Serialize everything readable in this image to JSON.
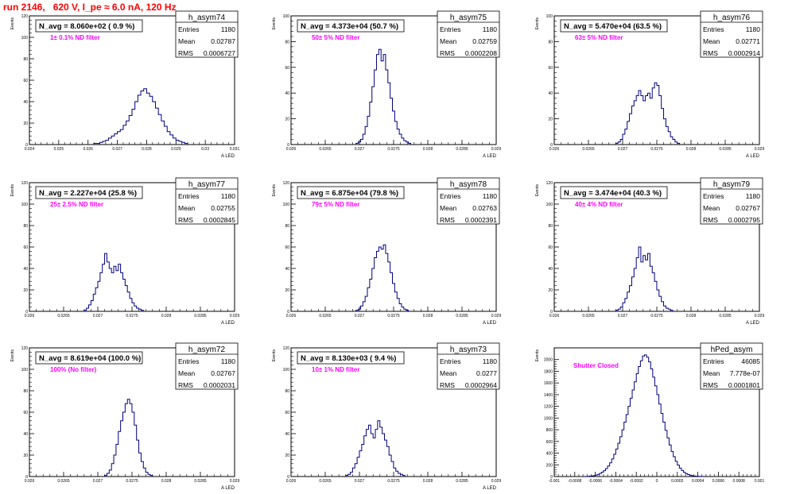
{
  "page": {
    "title": "run 2146,   620 V, I_pe ≈ 6.0 nA, 120 Hz"
  },
  "stat_labels": {
    "entries": "Entries",
    "mean": "Mean",
    "rms": "RMS"
  },
  "colors": {
    "title": "#ff0000",
    "histogram_line": "#000080",
    "annotation": "#ff00ff",
    "axis": "#000000"
  },
  "chart_data": [
    {
      "type": "histogram",
      "name": "h_asym74",
      "navg": "N_avg = 8.060e+02 ( 0.9 %)",
      "filter": "1± 0.1% ND filter",
      "entries": "1180",
      "mean": "0.02787",
      "rms": "0.0006727",
      "ylabel": "Events",
      "xlabel": "A_LED",
      "xlim": [
        0.024,
        0.031
      ],
      "ylim": [
        0,
        120
      ],
      "xticks": [
        "0.024",
        "0.025",
        "0.026",
        "0.027",
        "0.028",
        "0.029",
        "0.03",
        "0.031"
      ],
      "yticks": [
        "0",
        "20",
        "40",
        "60",
        "80",
        "100",
        "120"
      ],
      "bin_edges": [
        0.0262,
        0.0264
      ],
      "bin_width": 0.0001,
      "counts": [
        1,
        1,
        2,
        3,
        4,
        6,
        8,
        10,
        12,
        14,
        18,
        22,
        27,
        33,
        40,
        46,
        50,
        52,
        48,
        45,
        40,
        34,
        28,
        22,
        17,
        12,
        9,
        6,
        4,
        3,
        2,
        1
      ]
    },
    {
      "type": "histogram",
      "name": "h_asym75",
      "navg": "N_avg = 4.373e+04 (50.7 %)",
      "filter": "50± 5% ND filter",
      "entries": "1180",
      "mean": "0.02759",
      "rms": "0.0002208",
      "ylabel": "Events",
      "xlabel": "A_LED",
      "xlim": [
        0.026,
        0.029
      ],
      "ylim": [
        0,
        100
      ],
      "xticks": [
        "0.026",
        "0.0265",
        "0.027",
        "0.0275",
        "0.028",
        "0.0285",
        "0.029"
      ],
      "yticks": [
        "0",
        "20",
        "40",
        "60",
        "80",
        "100"
      ],
      "bin_width": 3.33e-05,
      "bin_start": 0.02695,
      "counts": [
        1,
        2,
        4,
        8,
        14,
        22,
        33,
        45,
        58,
        70,
        74,
        65,
        70,
        58,
        48,
        36,
        26,
        18,
        12,
        8,
        5,
        3,
        2,
        1
      ]
    },
    {
      "type": "histogram",
      "name": "h_asym76",
      "navg": "N_avg = 5.470e+04 (63.5 %)",
      "filter": "63± 5% ND filter",
      "entries": "1180",
      "mean": "0.02771",
      "rms": "0.0002914",
      "ylabel": "Events",
      "xlabel": "A_LED",
      "xlim": [
        0.026,
        0.029
      ],
      "ylim": [
        0,
        100
      ],
      "xticks": [
        "0.026",
        "0.0265",
        "0.027",
        "0.0275",
        "0.028",
        "0.0285",
        "0.029"
      ],
      "yticks": [
        "0",
        "20",
        "40",
        "60",
        "80",
        "100"
      ],
      "bin_width": 3.33e-05,
      "bin_start": 0.0269,
      "counts": [
        1,
        2,
        4,
        8,
        12,
        18,
        24,
        30,
        34,
        38,
        42,
        38,
        34,
        38,
        40,
        36,
        44,
        48,
        46,
        38,
        28,
        20,
        14,
        10,
        6,
        4,
        2,
        1
      ]
    },
    {
      "type": "histogram",
      "name": "h_asym77",
      "navg": "N_avg = 2.227e+04 (25.8 %)",
      "filter": "25± 2.5% ND filter",
      "entries": "1180",
      "mean": "0.02755",
      "rms": "0.0002845",
      "ylabel": "Events",
      "xlabel": "A_LED",
      "xlim": [
        0.026,
        0.029
      ],
      "ylim": [
        0,
        120
      ],
      "xticks": [
        "0.026",
        "0.0265",
        "0.027",
        "0.0275",
        "0.028",
        "0.0285",
        "0.029"
      ],
      "yticks": [
        "0",
        "20",
        "40",
        "60",
        "80",
        "100",
        "120"
      ],
      "bin_width": 3.33e-05,
      "bin_start": 0.0268,
      "counts": [
        1,
        3,
        6,
        10,
        16,
        22,
        28,
        36,
        44,
        54,
        46,
        40,
        36,
        42,
        38,
        44,
        36,
        30,
        24,
        18,
        12,
        8,
        5,
        3,
        2,
        1
      ]
    },
    {
      "type": "histogram",
      "name": "h_asym78",
      "navg": "N_avg = 6.875e+04 (79.8 %)",
      "filter": "79± 5% ND filter",
      "entries": "1180",
      "mean": "0.02763",
      "rms": "0.0002391",
      "ylabel": "Events",
      "xlabel": "A_LED",
      "xlim": [
        0.026,
        0.029
      ],
      "ylim": [
        0,
        120
      ],
      "xticks": [
        "0.026",
        "0.0265",
        "0.027",
        "0.0275",
        "0.028",
        "0.0285",
        "0.029"
      ],
      "yticks": [
        "0",
        "20",
        "40",
        "60",
        "80",
        "100",
        "120"
      ],
      "bin_width": 3.33e-05,
      "bin_start": 0.02695,
      "counts": [
        1,
        2,
        5,
        9,
        14,
        22,
        30,
        40,
        50,
        56,
        60,
        58,
        62,
        54,
        46,
        36,
        26,
        18,
        12,
        7,
        4,
        2,
        1
      ]
    },
    {
      "type": "histogram",
      "name": "h_asym79",
      "navg": "N_avg = 3.474e+04 (40.3 %)",
      "filter": "40± 4% ND filter",
      "entries": "1180",
      "mean": "0.02767",
      "rms": "0.0002795",
      "ylabel": "Events",
      "xlabel": "A_LED",
      "xlim": [
        0.026,
        0.029
      ],
      "ylim": [
        0,
        120
      ],
      "xticks": [
        "0.026",
        "0.0265",
        "0.027",
        "0.0275",
        "0.028",
        "0.0285",
        "0.029"
      ],
      "yticks": [
        "0",
        "20",
        "40",
        "60",
        "80",
        "100",
        "120"
      ],
      "bin_width": 3.33e-05,
      "bin_start": 0.0269,
      "counts": [
        1,
        2,
        4,
        8,
        12,
        18,
        24,
        32,
        40,
        50,
        60,
        46,
        52,
        48,
        54,
        42,
        36,
        28,
        20,
        14,
        9,
        5,
        3,
        2,
        1
      ]
    },
    {
      "type": "histogram",
      "name": "h_asym72",
      "navg": "N_avg = 8.619e+04 (100.0 %)",
      "filter": "100% (No filter)",
      "entries": "1180",
      "mean": "0.02767",
      "rms": "0.0002031",
      "ylabel": "Events",
      "xlabel": "A_LED",
      "xlim": [
        0.026,
        0.029
      ],
      "ylim": [
        0,
        120
      ],
      "xticks": [
        "0.026",
        "0.0265",
        "0.027",
        "0.0275",
        "0.028",
        "0.0285",
        "0.029"
      ],
      "yticks": [
        "0",
        "20",
        "40",
        "60",
        "80",
        "100",
        "120"
      ],
      "bin_width": 3.33e-05,
      "bin_start": 0.0271,
      "counts": [
        1,
        3,
        6,
        12,
        20,
        30,
        42,
        52,
        60,
        68,
        72,
        68,
        60,
        48,
        34,
        22,
        14,
        8,
        4,
        2,
        1
      ]
    },
    {
      "type": "histogram",
      "name": "h_asym73",
      "navg": "N_avg = 8.130e+03 ( 9.4 %)",
      "filter": "10± 1% ND filter",
      "entries": "1180",
      "mean": "0.0277",
      "rms": "0.0002964",
      "ylabel": "Events",
      "xlabel": "A_LED",
      "xlim": [
        0.026,
        0.029
      ],
      "ylim": [
        0,
        120
      ],
      "xticks": [
        "0.026",
        "0.0265",
        "0.027",
        "0.0275",
        "0.028",
        "0.0285",
        "0.029"
      ],
      "yticks": [
        "0",
        "20",
        "40",
        "60",
        "80",
        "100",
        "120"
      ],
      "bin_width": 3.33e-05,
      "bin_start": 0.0268,
      "counts": [
        1,
        2,
        4,
        8,
        12,
        18,
        24,
        30,
        38,
        44,
        48,
        40,
        36,
        44,
        52,
        46,
        40,
        34,
        28,
        20,
        14,
        8,
        5,
        3,
        2,
        1
      ]
    },
    {
      "type": "histogram",
      "name": "hPed_asym",
      "navg": "",
      "filter": "Shutter Closed",
      "entries": "46085",
      "mean": "7.778e-07",
      "rms": "0.0001801",
      "ylabel": "Events",
      "xlabel": "",
      "xlim": [
        -0.001,
        0.001
      ],
      "ylim": [
        0,
        2200
      ],
      "xticks": [
        "-0.001",
        "-0.0008",
        "-0.0006",
        "-0.0004",
        "-0.0002",
        "0",
        "0.0002",
        "0.0004",
        "0.0006",
        "0.0008",
        "0.001"
      ],
      "yticks": [
        "0",
        "200",
        "400",
        "600",
        "800",
        "1000",
        "1200",
        "1400",
        "1600",
        "1800",
        "2000"
      ],
      "bin_width": 2e-05,
      "bin_start": -0.0007,
      "counts": [
        2,
        4,
        6,
        10,
        16,
        24,
        36,
        52,
        74,
        100,
        136,
        180,
        234,
        300,
        380,
        470,
        570,
        680,
        800,
        930,
        1060,
        1200,
        1340,
        1480,
        1620,
        1760,
        1880,
        1980,
        2060,
        2080,
        2040,
        1960,
        1840,
        1700,
        1550,
        1400,
        1240,
        1080,
        930,
        790,
        660,
        540,
        430,
        340,
        260,
        196,
        144,
        104,
        72,
        50,
        34,
        22,
        14,
        9,
        5,
        3,
        2,
        1
      ]
    }
  ]
}
